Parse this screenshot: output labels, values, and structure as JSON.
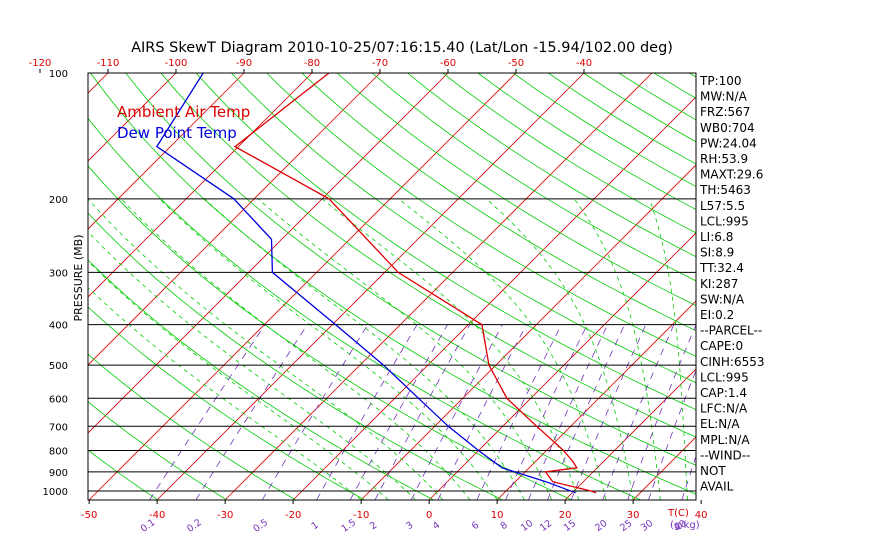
{
  "title": "AIRS SkewT Diagram 2010-10-25/07:16:15.40 (Lat/Lon -15.94/102.00 deg)",
  "colors": {
    "frame": "#000000",
    "isotherm": "#dd0000",
    "dry_adiabat": "#00cc00",
    "moist_adiabat": "#00cc00",
    "mixing_ratio": "#7733bb",
    "temp_profile": "#dd0000",
    "dew_profile": "#0000dd",
    "axis_label_red": "#dd0000",
    "axis_label_purple": "#7733bb"
  },
  "chart_data": {
    "type": "line",
    "title": "AIRS SkewT Diagram 2010-10-25/07:16:15.40 (Lat/Lon -15.94/102.00 deg)",
    "ylabel": "PRESSURE (MB)",
    "xlabel": "T(C)",
    "mixing_ratio_unit": "(g/kg)",
    "y_scale": "log",
    "ylim": [
      1050,
      100
    ],
    "xlim": [
      -50,
      40
    ],
    "pressure_ticks": [
      100,
      200,
      300,
      400,
      500,
      600,
      700,
      800,
      900,
      1000
    ],
    "bottom_temp_ticks": [
      -50,
      -40,
      -30,
      -20,
      -10,
      0,
      10,
      20,
      30,
      40
    ],
    "top_temp_ticks": [
      -120,
      -110,
      -100,
      -90,
      -80,
      -70,
      -60,
      -50,
      -40
    ],
    "mixing_ratio_ticks": [
      "0.1",
      "0.2",
      "0.5",
      "1",
      "1.5",
      "2",
      "3",
      "4",
      "6",
      "8",
      "10",
      "12",
      "15",
      "20",
      "25",
      "30",
      "40"
    ],
    "legend": [
      {
        "name": "Ambient Air Temp",
        "color": "#dd0000"
      },
      {
        "name": "Dew Point Temp",
        "color": "#0000dd"
      }
    ],
    "legend_position": "top-left",
    "series": [
      {
        "name": "Ambient Air Temp",
        "points": [
          [
            100,
            -77.5
          ],
          [
            150,
            -80.5
          ],
          [
            200,
            -59.0
          ],
          [
            300,
            -38.0
          ],
          [
            400,
            -18.0
          ],
          [
            500,
            -11.0
          ],
          [
            600,
            -3.5
          ],
          [
            700,
            5.0
          ],
          [
            800,
            12.5
          ],
          [
            850,
            15.5
          ],
          [
            880,
            17.0
          ],
          [
            900,
            13.0
          ],
          [
            950,
            15.5
          ],
          [
            1000,
            22.5
          ],
          [
            1010,
            23.5
          ]
        ]
      },
      {
        "name": "Dew Point Temp",
        "points": [
          [
            100,
            -96.0
          ],
          [
            150,
            -92.0
          ],
          [
            200,
            -73.0
          ],
          [
            250,
            -61.5
          ],
          [
            300,
            -56.5
          ],
          [
            400,
            -39.5
          ],
          [
            500,
            -26.5
          ],
          [
            600,
            -16.5
          ],
          [
            700,
            -8.0
          ],
          [
            800,
            0.0
          ],
          [
            880,
            6.0
          ],
          [
            950,
            14.5
          ],
          [
            1010,
            20.5
          ]
        ]
      }
    ],
    "side_indices": [
      "TP:100",
      "MW:N/A",
      "FRZ:567",
      "WB0:704",
      "PW:24.04",
      "RH:53.9",
      "MAXT:29.6",
      "TH:5463",
      "L57:5.5",
      "LCL:995",
      "LI:6.8",
      "SI:8.9",
      "TT:32.4",
      "KI:287",
      "SW:N/A",
      "EI:0.2",
      "--PARCEL--",
      "CAPE:0",
      "CINH:6553",
      "LCL:995",
      "CAP:1.4",
      "LFC:N/A",
      "EL:N/A",
      "MPL:N/A",
      "--WIND--",
      "NOT",
      "AVAIL"
    ]
  }
}
